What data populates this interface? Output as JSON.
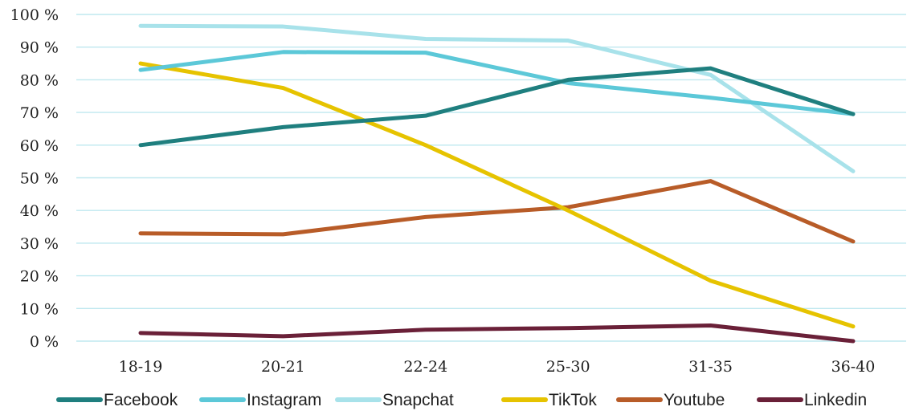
{
  "chart_data": {
    "type": "line",
    "categories": [
      "18-19",
      "20-21",
      "22-24",
      "25-30",
      "31-35",
      "36-40"
    ],
    "ylim": [
      0,
      100
    ],
    "y_ticks": [
      "0 %",
      "10 %",
      "20 %",
      "30 %",
      "40 %",
      "50 %",
      "60 %",
      "70 %",
      "80 %",
      "90 %",
      "100 %"
    ],
    "grid": true,
    "legend_position": "bottom",
    "series": [
      {
        "name": "Facebook",
        "color": "#1f7f7f",
        "values": [
          60,
          65.5,
          69,
          80,
          83.5,
          69.5
        ]
      },
      {
        "name": "Instagram",
        "color": "#5cc8d8",
        "values": [
          83,
          88.5,
          88.3,
          79,
          74.5,
          69.5
        ]
      },
      {
        "name": "Snapchat",
        "color": "#a8e2ea",
        "values": [
          96.5,
          96.3,
          92.5,
          92,
          81.5,
          52
        ]
      },
      {
        "name": "TikTok",
        "color": "#e6c300",
        "values": [
          85,
          77.5,
          60,
          40,
          18.5,
          4.5
        ]
      },
      {
        "name": "Youtube",
        "color": "#b85c28",
        "values": [
          33,
          32.7,
          38,
          41,
          49,
          30.5
        ]
      },
      {
        "name": "Linkedin",
        "color": "#6a2038",
        "values": [
          2.5,
          1.5,
          3.5,
          4,
          4.8,
          0
        ]
      }
    ]
  }
}
